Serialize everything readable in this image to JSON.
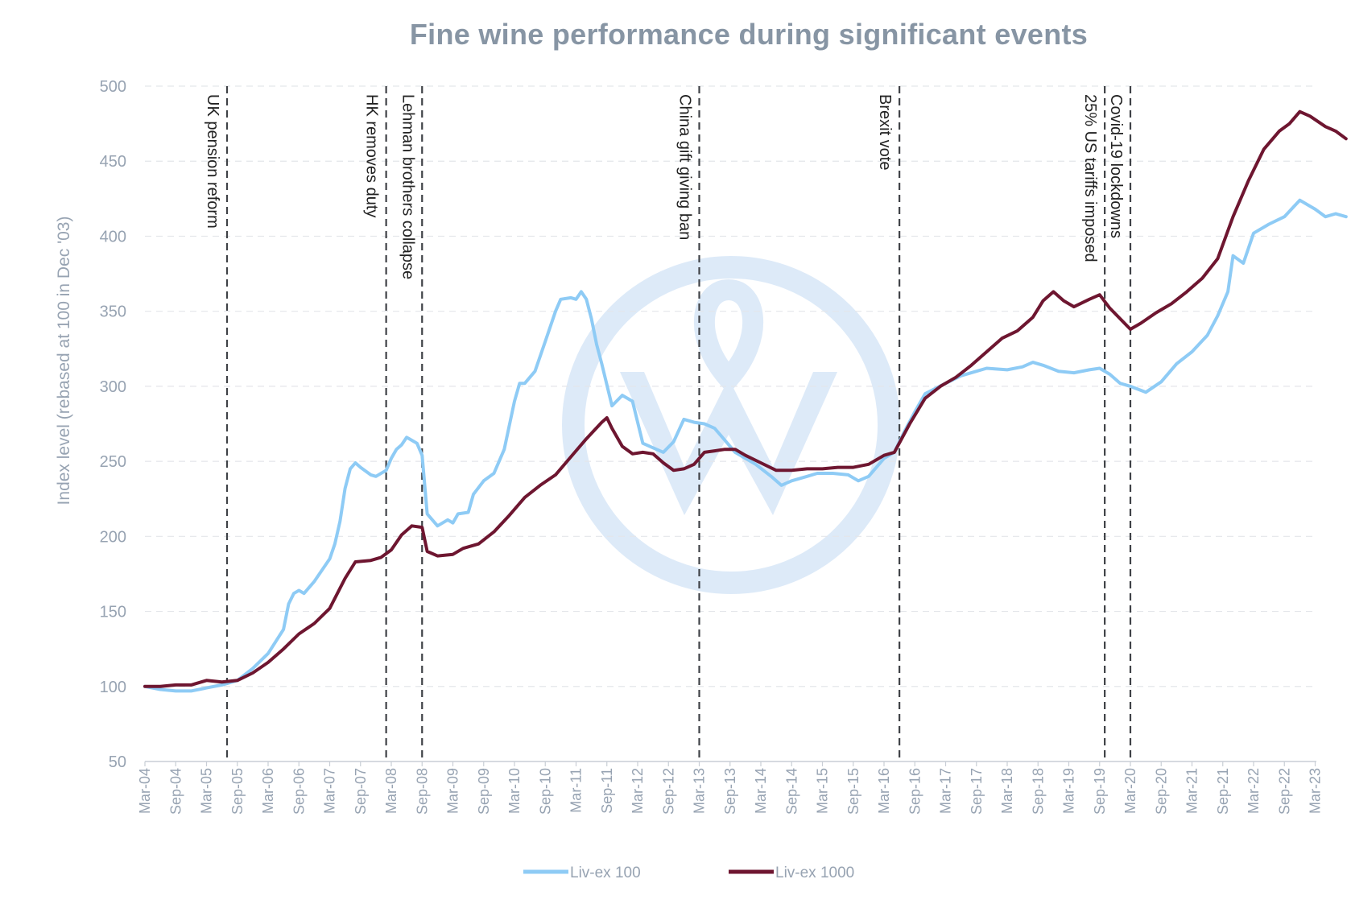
{
  "chart_data": {
    "type": "line",
    "title": "Fine wine performance during significant events",
    "ylabel": "Index level (rebased at 100 in Dec '03)",
    "xlabel": "",
    "ylim": [
      50,
      500
    ],
    "yticks": [
      50,
      100,
      150,
      200,
      250,
      300,
      350,
      400,
      450,
      500
    ],
    "xlim": [
      "Mar-04",
      "Mar-23"
    ],
    "xticks": [
      "Mar-04",
      "Sep-04",
      "Mar-05",
      "Sep-05",
      "Mar-06",
      "Sep-06",
      "Mar-07",
      "Sep-07",
      "Mar-08",
      "Sep-08",
      "Mar-09",
      "Sep-09",
      "Mar-10",
      "Sep-10",
      "Mar-11",
      "Sep-11",
      "Mar-12",
      "Sep-12",
      "Mar-13",
      "Sep-13",
      "Mar-14",
      "Sep-14",
      "Mar-15",
      "Sep-15",
      "Mar-16",
      "Sep-16",
      "Mar-17",
      "Sep-17",
      "Mar-18",
      "Sep-18",
      "Mar-19",
      "Sep-19",
      "Mar-20",
      "Sep-20",
      "Mar-21",
      "Sep-21",
      "Mar-22",
      "Sep-22",
      "Mar-23"
    ],
    "grid": "horizontal dashed",
    "legend_position": "bottom",
    "series": [
      {
        "name": "Liv-ex 100",
        "color": "#8ecbf5",
        "points": [
          [
            "2004-03",
            100
          ],
          [
            "2004-06",
            98
          ],
          [
            "2004-09",
            97
          ],
          [
            "2004-12",
            97
          ],
          [
            "2005-03",
            99
          ],
          [
            "2005-06",
            101
          ],
          [
            "2005-09",
            104
          ],
          [
            "2005-12",
            112
          ],
          [
            "2006-03",
            122
          ],
          [
            "2006-06",
            138
          ],
          [
            "2006-07",
            155
          ],
          [
            "2006-08",
            162
          ],
          [
            "2006-09",
            164
          ],
          [
            "2006-10",
            162
          ],
          [
            "2006-12",
            170
          ],
          [
            "2007-03",
            185
          ],
          [
            "2007-04",
            195
          ],
          [
            "2007-05",
            210
          ],
          [
            "2007-06",
            232
          ],
          [
            "2007-07",
            245
          ],
          [
            "2007-08",
            249
          ],
          [
            "2007-09",
            246
          ],
          [
            "2007-11",
            241
          ],
          [
            "2007-12",
            240
          ],
          [
            "2008-02",
            244
          ],
          [
            "2008-03",
            252
          ],
          [
            "2008-04",
            258
          ],
          [
            "2008-05",
            261
          ],
          [
            "2008-06",
            266
          ],
          [
            "2008-07",
            264
          ],
          [
            "2008-08",
            262
          ],
          [
            "2008-09",
            254
          ],
          [
            "2008-10",
            215
          ],
          [
            "2008-12",
            207
          ],
          [
            "2009-02",
            211
          ],
          [
            "2009-03",
            209
          ],
          [
            "2009-04",
            215
          ],
          [
            "2009-06",
            216
          ],
          [
            "2009-07",
            228
          ],
          [
            "2009-09",
            237
          ],
          [
            "2009-11",
            242
          ],
          [
            "2010-01",
            258
          ],
          [
            "2010-03",
            290
          ],
          [
            "2010-04",
            302
          ],
          [
            "2010-05",
            302
          ],
          [
            "2010-07",
            310
          ],
          [
            "2010-09",
            330
          ],
          [
            "2010-11",
            350
          ],
          [
            "2010-12",
            358
          ],
          [
            "2011-02",
            359
          ],
          [
            "2011-03",
            358
          ],
          [
            "2011-04",
            363
          ],
          [
            "2011-05",
            358
          ],
          [
            "2011-06",
            345
          ],
          [
            "2011-07",
            328
          ],
          [
            "2011-08",
            315
          ],
          [
            "2011-10",
            287
          ],
          [
            "2011-12",
            294
          ],
          [
            "2012-02",
            290
          ],
          [
            "2012-04",
            262
          ],
          [
            "2012-06",
            259
          ],
          [
            "2012-08",
            256
          ],
          [
            "2012-10",
            263
          ],
          [
            "2012-12",
            278
          ],
          [
            "2013-02",
            276
          ],
          [
            "2013-04",
            275
          ],
          [
            "2013-06",
            272
          ],
          [
            "2013-08",
            264
          ],
          [
            "2013-10",
            256
          ],
          [
            "2013-12",
            252
          ],
          [
            "2014-02",
            248
          ],
          [
            "2014-05",
            240
          ],
          [
            "2014-07",
            234
          ],
          [
            "2014-09",
            237
          ],
          [
            "2014-12",
            240
          ],
          [
            "2015-02",
            242
          ],
          [
            "2015-05",
            242
          ],
          [
            "2015-08",
            241
          ],
          [
            "2015-10",
            237
          ],
          [
            "2015-12",
            240
          ],
          [
            "2016-03",
            252
          ],
          [
            "2016-05",
            256
          ],
          [
            "2016-07",
            270
          ],
          [
            "2016-09",
            283
          ],
          [
            "2016-11",
            295
          ],
          [
            "2017-03",
            302
          ],
          [
            "2017-06",
            307
          ],
          [
            "2017-09",
            310
          ],
          [
            "2017-11",
            312
          ],
          [
            "2018-03",
            311
          ],
          [
            "2018-06",
            313
          ],
          [
            "2018-08",
            316
          ],
          [
            "2018-10",
            314
          ],
          [
            "2019-01",
            310
          ],
          [
            "2019-04",
            309
          ],
          [
            "2019-07",
            311
          ],
          [
            "2019-09",
            312
          ],
          [
            "2019-11",
            308
          ],
          [
            "2020-01",
            302
          ],
          [
            "2020-03",
            300
          ],
          [
            "2020-06",
            296
          ],
          [
            "2020-09",
            303
          ],
          [
            "2020-12",
            315
          ],
          [
            "2021-03",
            323
          ],
          [
            "2021-06",
            334
          ],
          [
            "2021-08",
            347
          ],
          [
            "2021-10",
            363
          ],
          [
            "2021-11",
            387
          ],
          [
            "2022-01",
            382
          ],
          [
            "2022-03",
            402
          ],
          [
            "2022-06",
            408
          ],
          [
            "2022-09",
            413
          ],
          [
            "2022-12",
            424
          ],
          [
            "2023-03",
            418
          ],
          [
            "2023-05",
            413
          ],
          [
            "2023-07",
            415
          ],
          [
            "2023-09",
            413
          ]
        ]
      },
      {
        "name": "Liv-ex 1000",
        "color": "#6e1630",
        "points": [
          [
            "2004-03",
            100
          ],
          [
            "2004-06",
            100
          ],
          [
            "2004-09",
            101
          ],
          [
            "2004-12",
            101
          ],
          [
            "2005-03",
            104
          ],
          [
            "2005-06",
            103
          ],
          [
            "2005-09",
            104
          ],
          [
            "2005-12",
            109
          ],
          [
            "2006-03",
            116
          ],
          [
            "2006-06",
            125
          ],
          [
            "2006-09",
            135
          ],
          [
            "2006-12",
            142
          ],
          [
            "2007-03",
            152
          ],
          [
            "2007-06",
            172
          ],
          [
            "2007-08",
            183
          ],
          [
            "2007-11",
            184
          ],
          [
            "2008-01",
            186
          ],
          [
            "2008-03",
            191
          ],
          [
            "2008-05",
            201
          ],
          [
            "2008-07",
            207
          ],
          [
            "2008-09",
            206
          ],
          [
            "2008-10",
            190
          ],
          [
            "2008-12",
            187
          ],
          [
            "2009-03",
            188
          ],
          [
            "2009-05",
            192
          ],
          [
            "2009-08",
            195
          ],
          [
            "2009-11",
            203
          ],
          [
            "2010-02",
            214
          ],
          [
            "2010-05",
            226
          ],
          [
            "2010-08",
            234
          ],
          [
            "2010-11",
            241
          ],
          [
            "2011-02",
            253
          ],
          [
            "2011-05",
            265
          ],
          [
            "2011-08",
            276
          ],
          [
            "2011-09",
            279
          ],
          [
            "2011-10",
            272
          ],
          [
            "2011-12",
            260
          ],
          [
            "2012-02",
            255
          ],
          [
            "2012-04",
            256
          ],
          [
            "2012-06",
            255
          ],
          [
            "2012-08",
            249
          ],
          [
            "2012-10",
            244
          ],
          [
            "2012-12",
            245
          ],
          [
            "2013-02",
            248
          ],
          [
            "2013-04",
            256
          ],
          [
            "2013-06",
            257
          ],
          [
            "2013-08",
            258
          ],
          [
            "2013-10",
            258
          ],
          [
            "2013-12",
            254
          ],
          [
            "2014-03",
            249
          ],
          [
            "2014-06",
            244
          ],
          [
            "2014-09",
            244
          ],
          [
            "2014-12",
            245
          ],
          [
            "2015-03",
            245
          ],
          [
            "2015-06",
            246
          ],
          [
            "2015-09",
            246
          ],
          [
            "2015-12",
            248
          ],
          [
            "2016-03",
            254
          ],
          [
            "2016-05",
            256
          ],
          [
            "2016-08",
            275
          ],
          [
            "2016-11",
            292
          ],
          [
            "2017-02",
            300
          ],
          [
            "2017-05",
            306
          ],
          [
            "2017-08",
            314
          ],
          [
            "2017-11",
            323
          ],
          [
            "2018-02",
            332
          ],
          [
            "2018-05",
            337
          ],
          [
            "2018-08",
            346
          ],
          [
            "2018-10",
            357
          ],
          [
            "2018-12",
            363
          ],
          [
            "2019-02",
            357
          ],
          [
            "2019-04",
            353
          ],
          [
            "2019-07",
            358
          ],
          [
            "2019-09",
            361
          ],
          [
            "2019-11",
            352
          ],
          [
            "2020-01",
            345
          ],
          [
            "2020-03",
            338
          ],
          [
            "2020-05",
            342
          ],
          [
            "2020-08",
            349
          ],
          [
            "2020-11",
            355
          ],
          [
            "2021-02",
            363
          ],
          [
            "2021-05",
            372
          ],
          [
            "2021-08",
            385
          ],
          [
            "2021-11",
            413
          ],
          [
            "2022-02",
            437
          ],
          [
            "2022-05",
            458
          ],
          [
            "2022-08",
            470
          ],
          [
            "2022-10",
            475
          ],
          [
            "2022-12",
            483
          ],
          [
            "2023-02",
            480
          ],
          [
            "2023-05",
            473
          ],
          [
            "2023-07",
            470
          ],
          [
            "2023-09",
            465
          ]
        ]
      }
    ],
    "events": [
      {
        "label": "UK pension reform",
        "date": "2005-07"
      },
      {
        "label": "HK removes duty",
        "date": "2008-02"
      },
      {
        "label": "Lehman brothers collapse",
        "date": "2008-09"
      },
      {
        "label": "China gift giving ban",
        "date": "2013-03"
      },
      {
        "label": "Brexit vote",
        "date": "2016-06"
      },
      {
        "label": "25% US tariffs imposed",
        "date": "2019-10"
      },
      {
        "label": "Covid-19 lockdowns",
        "date": "2020-03"
      }
    ]
  }
}
